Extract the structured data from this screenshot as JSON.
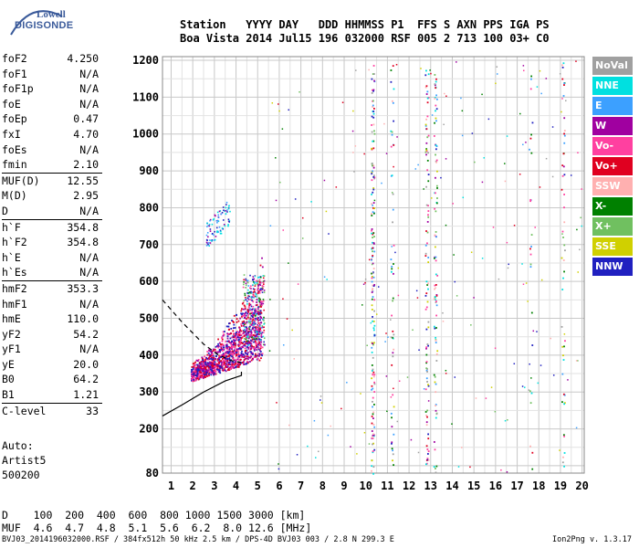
{
  "logo": {
    "line1": "Lowell",
    "line2": "DIGISONDE"
  },
  "header": {
    "line1": "Station   YYYY DAY   DDD HHMMSS P1  FFS S AXN PPS IGA PS",
    "line2": "Boa Vista 2014 Jul15 196 032000 RSF 005 2 713 100 03+ C0"
  },
  "params": [
    [
      {
        "n": "foF2",
        "v": "4.250"
      },
      {
        "n": "foF1",
        "v": "N/A"
      },
      {
        "n": "foF1p",
        "v": "N/A"
      },
      {
        "n": "foE",
        "v": "N/A"
      },
      {
        "n": "foEp",
        "v": "0.47"
      },
      {
        "n": "fxI",
        "v": "4.70"
      },
      {
        "n": "foEs",
        "v": "N/A"
      },
      {
        "n": "fmin",
        "v": "2.10"
      }
    ],
    [
      {
        "n": "MUF(D)",
        "v": "12.55"
      },
      {
        "n": "M(D)",
        "v": "2.95"
      },
      {
        "n": "D",
        "v": "N/A"
      }
    ],
    [
      {
        "n": "h`F",
        "v": "354.8"
      },
      {
        "n": "h`F2",
        "v": "354.8"
      },
      {
        "n": "h`E",
        "v": "N/A"
      },
      {
        "n": "h`Es",
        "v": "N/A"
      }
    ],
    [
      {
        "n": "hmF2",
        "v": "353.3"
      },
      {
        "n": "hmF1",
        "v": "N/A"
      },
      {
        "n": "hmE",
        "v": "110.0"
      },
      {
        "n": "yF2",
        "v": "54.2"
      },
      {
        "n": "yF1",
        "v": "N/A"
      },
      {
        "n": "yE",
        "v": "20.0"
      },
      {
        "n": "B0",
        "v": "64.2"
      },
      {
        "n": "B1",
        "v": "1.21"
      }
    ],
    [
      {
        "n": "C-level",
        "v": "33"
      }
    ]
  ],
  "auto": {
    "line1": "Auto:",
    "line2": "Artist5",
    "line3": "500200"
  },
  "legend": [
    {
      "label": "NoVal",
      "color": "#a0a0a0"
    },
    {
      "label": "NNE",
      "color": "#00e0e0"
    },
    {
      "label": "E",
      "color": "#3ca0ff"
    },
    {
      "label": "W",
      "color": "#a000a0"
    },
    {
      "label": "Vo-",
      "color": "#ff40a0"
    },
    {
      "label": "Vo+",
      "color": "#e00020"
    },
    {
      "label": "SSW",
      "color": "#ffb0b0"
    },
    {
      "label": "X-",
      "color": "#008000"
    },
    {
      "label": "X+",
      "color": "#70c060"
    },
    {
      "label": "SSE",
      "color": "#d0d000"
    },
    {
      "label": "NNW",
      "color": "#2020c0"
    }
  ],
  "chart_data": {
    "type": "scatter",
    "x_ticks": [
      "1",
      "2",
      "3",
      "4",
      "5",
      "6",
      "7",
      "8",
      "9",
      "10",
      "11",
      "12",
      "13",
      "14",
      "15",
      "16",
      "17",
      "18",
      "19",
      "20"
    ],
    "y_ticks": [
      "80",
      "200",
      "300",
      "400",
      "500",
      "600",
      "700",
      "800",
      "900",
      "1000",
      "1100",
      "1200"
    ],
    "xlim": [
      0.6,
      20.1
    ],
    "ylim": [
      80,
      1210
    ],
    "grid": true,
    "profile_curve": [
      [
        0.6,
        235
      ],
      [
        1.5,
        265
      ],
      [
        2.5,
        300
      ],
      [
        3.5,
        330
      ],
      [
        4.25,
        345
      ],
      [
        4.25,
        355
      ]
    ],
    "dashed_curve": [
      [
        0.6,
        550
      ],
      [
        1.5,
        490
      ],
      [
        2.5,
        430
      ],
      [
        3.2,
        400
      ],
      [
        3.8,
        385
      ],
      [
        4.25,
        380
      ]
    ]
  },
  "muf_table": {
    "row1": "D    100  200  400  600  800 1000 1500 3000 [km]",
    "row2": "MUF  4.6  4.7  4.8  5.1  5.6  6.2  8.0 12.6 [MHz]"
  },
  "footer": "BVJ03_2014196032000.RSF / 384fx512h 50 kHz 2.5 km / DPS-4D BVJ03 003 / 2.8 N 299.3 E",
  "version": "Ion2Png v. 1.3.17"
}
